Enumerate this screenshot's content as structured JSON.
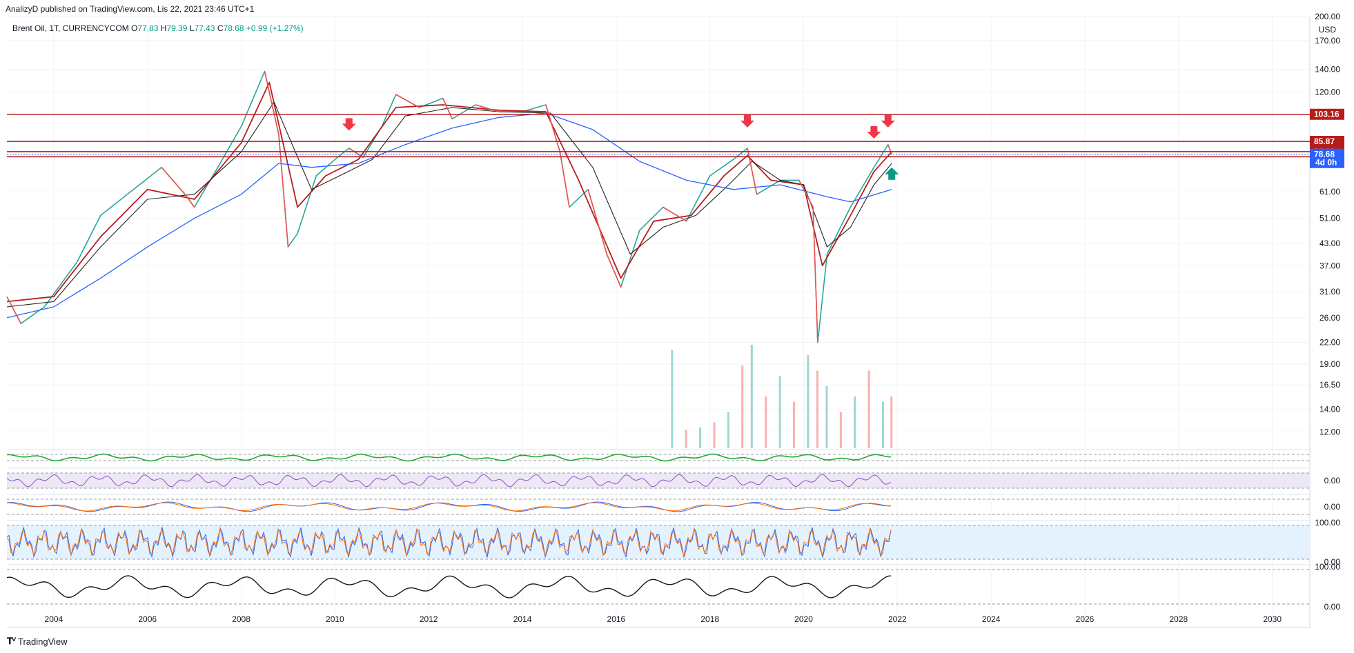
{
  "header": {
    "published_by": "AnalizyD published on TradingView.com, Lis 22, 2021 23:46 UTC+1"
  },
  "legend": {
    "symbol": "Brent Oil, 1T, CURRENCYCOM",
    "open_label": "O",
    "open": "77.83",
    "high_label": "H",
    "high": "79.39",
    "low_label": "L",
    "low": "77.43",
    "close_label": "C",
    "close": "78.68",
    "change": "+0.99 (+1.27%)"
  },
  "brand": {
    "icon": "tradingview-logo-icon",
    "name": "TradingView"
  },
  "colors": {
    "up": "#26a69a",
    "down": "#ef5350",
    "ema_red": "#b71c1c",
    "ema_black": "#222222",
    "ema_blue": "#2962ff",
    "level": "#b71c1c",
    "arrow_red": "#f23645",
    "arrow_green": "#089981",
    "rsi": "#7e57c2",
    "stoch_k": "#2962ff",
    "stoch_d": "#ff6d00",
    "band": "#e3f2fd"
  },
  "chart_data": {
    "type": "line",
    "title": "",
    "xlabel": "",
    "ylabel": "",
    "y_axis_unit": "USD",
    "log_scale": true,
    "ylim": [
      11,
      200
    ],
    "xlim": [
      2003.0,
      2030.8
    ],
    "x_ticks": [
      "2004",
      "2006",
      "2008",
      "2010",
      "2012",
      "2014",
      "2016",
      "2018",
      "2020",
      "2022",
      "2024",
      "2026",
      "2028",
      "2030"
    ],
    "y_ticks": [
      "200.00",
      "170.00",
      "140.00",
      "120.00",
      "103.16",
      "85.87",
      "80.09",
      "78.68",
      "77.38",
      "61.00",
      "51.00",
      "43.00",
      "37.00",
      "31.00",
      "26.00",
      "22.00",
      "19.00",
      "16.50",
      "14.00",
      "12.00"
    ],
    "grid": true,
    "series": [
      {
        "role": "price",
        "x": [
          2003.0,
          2003.3,
          2003.8,
          2004.5,
          2005.0,
          2005.7,
          2006.3,
          2006.8,
          2007.0,
          2007.5,
          2008.0,
          2008.5,
          2008.8,
          2009.0,
          2009.2,
          2009.6,
          2010.0,
          2010.3,
          2010.6,
          2011.0,
          2011.3,
          2011.8,
          2012.3,
          2012.5,
          2013.0,
          2013.5,
          2014.0,
          2014.5,
          2014.8,
          2015.0,
          2015.4,
          2015.8,
          2016.1,
          2016.5,
          2017.0,
          2017.5,
          2018.0,
          2018.5,
          2018.8,
          2019.0,
          2019.5,
          2019.9,
          2020.2,
          2020.3,
          2020.5,
          2021.0,
          2021.5,
          2021.8,
          2021.88
        ],
        "y": [
          30,
          25,
          28,
          38,
          52,
          62,
          72,
          60,
          55,
          72,
          95,
          138,
          90,
          42,
          46,
          68,
          76,
          82,
          77,
          95,
          118,
          108,
          115,
          100,
          110,
          105,
          105,
          110,
          80,
          55,
          62,
          40,
          32,
          47,
          55,
          50,
          68,
          76,
          82,
          60,
          66,
          66,
          55,
          22,
          40,
          55,
          72,
          84,
          78.68
        ]
      },
      {
        "role": "ema-fast",
        "x": [
          2003.0,
          2004.0,
          2005.0,
          2006.0,
          2007.0,
          2008.0,
          2008.6,
          2009.2,
          2009.8,
          2010.5,
          2011.3,
          2012.3,
          2013.5,
          2014.5,
          2015.2,
          2016.1,
          2016.8,
          2017.6,
          2018.3,
          2018.8,
          2019.3,
          2020.0,
          2020.4,
          2021.0,
          2021.5,
          2021.88
        ],
        "y": [
          29,
          30,
          45,
          62,
          58,
          85,
          128,
          55,
          68,
          76,
          108,
          110,
          106,
          105,
          66,
          34,
          50,
          52,
          68,
          78,
          66,
          64,
          37,
          52,
          70,
          80
        ]
      },
      {
        "role": "ema-slow",
        "x": [
          2003.0,
          2004.0,
          2005.0,
          2006.0,
          2007.0,
          2008.0,
          2008.7,
          2009.5,
          2010.0,
          2010.8,
          2011.5,
          2012.5,
          2013.5,
          2014.6,
          2015.5,
          2016.3,
          2017.0,
          2017.7,
          2018.4,
          2018.9,
          2019.5,
          2020.0,
          2020.5,
          2021.0,
          2021.5,
          2021.88
        ],
        "y": [
          28,
          29,
          42,
          58,
          60,
          80,
          112,
          62,
          67,
          76,
          102,
          108,
          105,
          104,
          72,
          40,
          48,
          52,
          64,
          75,
          66,
          64,
          42,
          48,
          64,
          74
        ]
      },
      {
        "role": "ema-long",
        "x": [
          2003.0,
          2004.0,
          2005.0,
          2006.0,
          2007.0,
          2008.0,
          2008.8,
          2009.5,
          2010.5,
          2011.5,
          2012.5,
          2013.5,
          2014.5,
          2015.5,
          2016.5,
          2017.5,
          2018.5,
          2019.5,
          2020.5,
          2021.0,
          2021.88
        ],
        "y": [
          26,
          28,
          34,
          42,
          51,
          60,
          74,
          72,
          74,
          84,
          94,
          101,
          104,
          93,
          75,
          66,
          62,
          64,
          59,
          57,
          62
        ]
      }
    ],
    "volume": {
      "x": [
        2017.2,
        2017.5,
        2017.8,
        2018.1,
        2018.4,
        2018.7,
        2018.9,
        2019.2,
        2019.5,
        2019.8,
        2020.1,
        2020.3,
        2020.5,
        2020.8,
        2021.1,
        2021.4,
        2021.7,
        2021.88
      ],
      "values": [
        0.95,
        0.18,
        0.2,
        0.25,
        0.35,
        0.8,
        1.0,
        0.5,
        0.7,
        0.45,
        0.9,
        0.75,
        0.6,
        0.35,
        0.5,
        0.75,
        0.45,
        0.5
      ]
    },
    "horizontal_levels": [
      {
        "value": 103.16,
        "label": "103.16"
      },
      {
        "value": 85.87,
        "label": "85.87"
      },
      {
        "value": 80.09,
        "label": "80.09"
      },
      {
        "value": 77.38,
        "label": "77.38"
      }
    ],
    "current_price": {
      "value": 78.68,
      "label": "78.68",
      "countdown": "4d 0h"
    },
    "arrows": [
      {
        "x": 2010.3,
        "value": 95,
        "dir": "down"
      },
      {
        "x": 2018.8,
        "value": 97,
        "dir": "down"
      },
      {
        "x": 2021.5,
        "value": 90,
        "dir": "down"
      },
      {
        "x": 2021.8,
        "value": 97,
        "dir": "down"
      },
      {
        "x": 2021.88,
        "value": 70,
        "dir": "up"
      }
    ],
    "panes": [
      {
        "id": "oscillator-1",
        "ticks": []
      },
      {
        "id": "rsi",
        "ticks": [
          "0.00"
        ]
      },
      {
        "id": "macd",
        "ticks": [
          "0.00"
        ]
      },
      {
        "id": "stochastic",
        "ticks": [
          "100.00",
          "0.00"
        ]
      },
      {
        "id": "oscillator-2",
        "ticks": [
          "100.00",
          "0.00"
        ]
      }
    ]
  }
}
